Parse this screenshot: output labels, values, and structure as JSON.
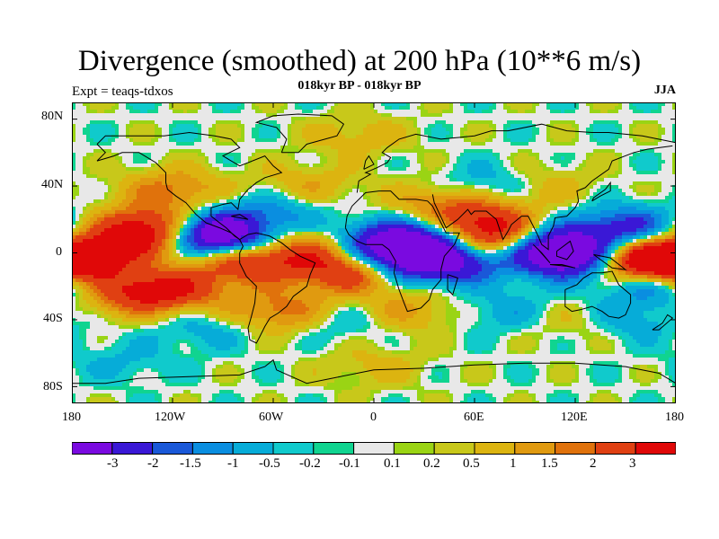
{
  "header": {
    "title": "Divergence (smoothed) at 200 hPa (10**6 m/s)",
    "experiment": "Expt = teaqs-tdxos",
    "subtitle": "018kyr BP - 018kyr BP",
    "season": "JJA"
  },
  "axes": {
    "lat_ticks": [
      "80N",
      "40N",
      "0",
      "40S",
      "80S"
    ],
    "lon_ticks": [
      "180",
      "120W",
      "60W",
      "0",
      "60E",
      "120E",
      "180"
    ]
  },
  "colors": {
    "frame": "#000000",
    "coastline": "#000000",
    "palette": [
      "#7a0ae0",
      "#3a18d6",
      "#1a58d8",
      "#0a8ee0",
      "#06acd8",
      "#10cacc",
      "#10d490",
      "#e8e8e8",
      "#9ad414",
      "#c8c81a",
      "#dcb410",
      "#e09a10",
      "#e0720c",
      "#e04012",
      "#e00808"
    ]
  },
  "colorbar": {
    "labels": [
      "-3",
      "-2",
      "-1.5",
      "-1",
      "-0.5",
      "-0.2",
      "-0.1",
      "0.1",
      "0.2",
      "0.5",
      "1",
      "1.5",
      "2",
      "3"
    ]
  },
  "field": {
    "description_units": "10**6 m/s",
    "background_level": 0,
    "features": [
      {
        "lon": -140,
        "lat": 10,
        "value": 3.5
      },
      {
        "lon": -125,
        "lat": 18,
        "value": 2.2
      },
      {
        "lon": -120,
        "lat": -22,
        "value": 2.8
      },
      {
        "lon": -150,
        "lat": -25,
        "value": 2.0
      },
      {
        "lon": -90,
        "lat": 8,
        "value": -3.5
      },
      {
        "lon": -105,
        "lat": 15,
        "value": -2.6
      },
      {
        "lon": -75,
        "lat": -5,
        "value": 3.2
      },
      {
        "lon": -30,
        "lat": 2,
        "value": 2.6
      },
      {
        "lon": -15,
        "lat": -12,
        "value": 2.8
      },
      {
        "lon": -5,
        "lat": 5,
        "value": -2.8
      },
      {
        "lon": 15,
        "lat": -5,
        "value": -2.0
      },
      {
        "lon": 30,
        "lat": 8,
        "value": -3.0
      },
      {
        "lon": 45,
        "lat": -5,
        "value": -3.2
      },
      {
        "lon": 70,
        "lat": 8,
        "value": 3.8
      },
      {
        "lon": 65,
        "lat": 20,
        "value": 2.2
      },
      {
        "lon": 100,
        "lat": 5,
        "value": -3.0
      },
      {
        "lon": 120,
        "lat": -3,
        "value": -4.0
      },
      {
        "lon": 155,
        "lat": -5,
        "value": 3.3
      },
      {
        "lon": 175,
        "lat": -5,
        "value": 2.5
      },
      {
        "lon": 150,
        "lat": 15,
        "value": -2.4
      },
      {
        "lon": 170,
        "lat": -18,
        "value": -2.2
      },
      {
        "lon": -172,
        "lat": -5,
        "value": 2.6
      },
      {
        "lon": -55,
        "lat": -35,
        "value": 2.0
      },
      {
        "lon": -60,
        "lat": 25,
        "value": -1.2
      },
      {
        "lon": -40,
        "lat": 40,
        "value": 1.0
      },
      {
        "lon": -120,
        "lat": 38,
        "value": 1.6
      },
      {
        "lon": 40,
        "lat": 30,
        "value": 1.4
      },
      {
        "lon": 70,
        "lat": 40,
        "value": -1.2
      },
      {
        "lon": 100,
        "lat": 40,
        "value": 0.9
      },
      {
        "lon": -10,
        "lat": 70,
        "value": 0.8
      },
      {
        "lon": 20,
        "lat": -35,
        "value": 1.2
      },
      {
        "lon": 80,
        "lat": -35,
        "value": -0.9
      },
      {
        "lon": 120,
        "lat": -40,
        "value": 0.8
      },
      {
        "lon": -100,
        "lat": -45,
        "value": -0.8
      },
      {
        "lon": -20,
        "lat": -40,
        "value": -0.9
      },
      {
        "lon": 150,
        "lat": -40,
        "value": -1.0
      },
      {
        "lon": 0,
        "lat": -68,
        "value": 0.7
      },
      {
        "lon": -150,
        "lat": -65,
        "value": -0.6
      }
    ]
  }
}
